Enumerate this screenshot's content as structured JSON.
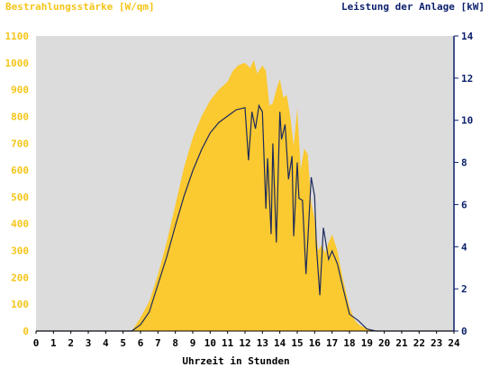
{
  "chart_data": {
    "type": "area",
    "title_left": "Bestrahlungsstärke [W/qm]",
    "title_right": "Leistung der Anlage [kW]",
    "xlabel": "Uhrzeit in Stunden",
    "xlim": [
      0,
      24
    ],
    "x_ticks": [
      "0",
      "1",
      "2",
      "3",
      "4",
      "5",
      "6",
      "7",
      "8",
      "9",
      "10",
      "11",
      "12",
      "13",
      "14",
      "15",
      "16",
      "17",
      "18",
      "19",
      "20",
      "21",
      "22",
      "23",
      "24"
    ],
    "y_left": {
      "lim": [
        0,
        1100
      ],
      "ticks": [
        "0",
        "100",
        "200",
        "300",
        "400",
        "500",
        "600",
        "700",
        "800",
        "900",
        "1000",
        "1100"
      ]
    },
    "y_right": {
      "lim": [
        0,
        14
      ],
      "ticks": [
        "0",
        "2",
        "4",
        "6",
        "8",
        "10",
        "12",
        "14"
      ]
    },
    "colors": {
      "plot_bg": "#dcdcdc",
      "irradiance": "#fbc930",
      "power": "#1c2a5c",
      "axis": "#0a1f6b"
    },
    "grid": false,
    "series": [
      {
        "axis": "left",
        "x": [
          5.5,
          6.0,
          6.5,
          7.0,
          7.5,
          8.0,
          8.5,
          9.0,
          9.5,
          10.0,
          10.5,
          11.0,
          11.3,
          11.6,
          12.0,
          12.3,
          12.5,
          12.7,
          13.0,
          13.2,
          13.4,
          13.6,
          13.8,
          14.0,
          14.2,
          14.4,
          14.6,
          14.8,
          15.0,
          15.2,
          15.4,
          15.6,
          15.8,
          16.0,
          16.2,
          16.4,
          16.6,
          16.8,
          17.0,
          17.3,
          17.6,
          18.0,
          18.3,
          18.6,
          19.0,
          19.4
        ],
        "values": [
          0,
          50,
          110,
          210,
          330,
          470,
          610,
          720,
          800,
          860,
          900,
          930,
          970,
          990,
          1000,
          980,
          1010,
          960,
          990,
          970,
          840,
          850,
          900,
          940,
          870,
          880,
          800,
          690,
          830,
          600,
          680,
          660,
          480,
          420,
          300,
          320,
          290,
          330,
          360,
          300,
          200,
          90,
          40,
          20,
          10,
          0
        ]
      },
      {
        "axis": "right",
        "x": [
          5.5,
          6.0,
          6.5,
          7.0,
          7.5,
          8.0,
          8.5,
          9.0,
          9.5,
          10.0,
          10.5,
          11.0,
          11.5,
          12.0,
          12.2,
          12.4,
          12.6,
          12.8,
          13.0,
          13.2,
          13.3,
          13.5,
          13.6,
          13.8,
          14.0,
          14.1,
          14.3,
          14.5,
          14.7,
          14.8,
          15.0,
          15.1,
          15.3,
          15.5,
          15.8,
          16.0,
          16.1,
          16.3,
          16.5,
          16.8,
          17.0,
          17.3,
          17.7,
          18.0,
          18.5,
          19.0,
          19.5
        ],
        "values": [
          0,
          0.3,
          0.9,
          2.2,
          3.5,
          5.0,
          6.4,
          7.6,
          8.6,
          9.4,
          9.9,
          10.2,
          10.5,
          10.6,
          8.1,
          10.4,
          9.6,
          10.7,
          10.4,
          5.8,
          8.2,
          4.6,
          8.9,
          4.2,
          10.4,
          9.1,
          9.8,
          7.2,
          8.3,
          4.5,
          8.0,
          6.3,
          6.2,
          2.7,
          7.3,
          6.4,
          4.0,
          1.7,
          4.9,
          3.4,
          3.8,
          3.2,
          1.8,
          0.8,
          0.5,
          0.1,
          0
        ]
      }
    ]
  }
}
